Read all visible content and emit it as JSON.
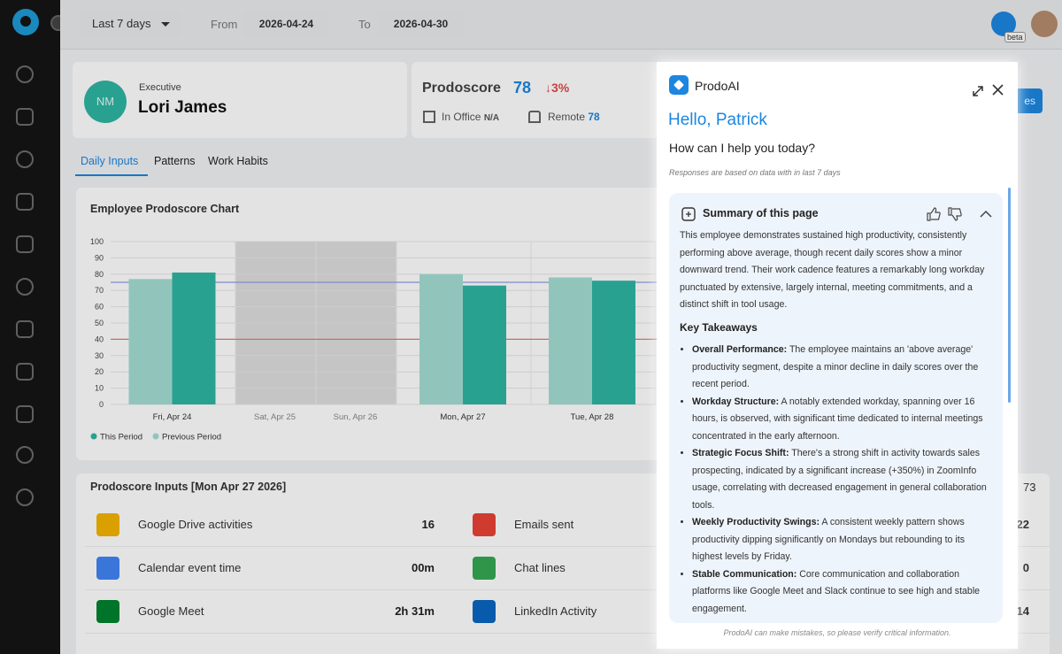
{
  "topbar": {
    "range": "Last 7 days",
    "from_label": "From",
    "from": "2026-04-24",
    "to_label": "To",
    "to": "2026-04-30",
    "badge": "beta"
  },
  "profile": {
    "initials": "NM",
    "role": "Executive",
    "name": "Lori James"
  },
  "score": {
    "label": "Prodoscore",
    "value": 78,
    "change": "↓3%",
    "office_label": "In Office",
    "office": "N/A",
    "remote_label": "Remote",
    "remote": 78
  },
  "hidden_button": "es",
  "tabs": [
    "Daily Inputs",
    "Patterns",
    "Work Habits"
  ],
  "chart": {
    "type": "bar",
    "title": "Employee Prodoscore Chart",
    "categories": [
      "Fri, Apr 24",
      "Sat, Apr 25",
      "Sun, Apr 26",
      "Mon, Apr 27",
      "Tue, Apr 28"
    ],
    "series": [
      {
        "name": "This Period",
        "color": "#2fb5a3",
        "values": [
          81,
          null,
          null,
          73,
          76
        ]
      },
      {
        "name": "Previous Period",
        "color": "#a3ded4",
        "values": [
          77,
          null,
          null,
          80,
          78
        ]
      }
    ],
    "reference_lines": [
      {
        "value": 75,
        "color": "#8f9ce6"
      },
      {
        "value": 40,
        "color": "#e07b7b"
      }
    ],
    "ylim": [
      0,
      100
    ],
    "yticks": [
      0,
      10,
      20,
      30,
      40,
      50,
      60,
      70,
      80,
      90,
      100
    ],
    "grid": true
  },
  "inputs": {
    "title": "Prodoscore Inputs [Mon Apr 27 2026]",
    "total": 73,
    "rows": [
      [
        {
          "label": "Google Drive activities",
          "value": 16
        },
        {
          "label": "Emails sent",
          "value": 22
        }
      ],
      [
        {
          "label": "Calendar event time",
          "value": "00m"
        },
        {
          "label": "Chat lines",
          "value": 0
        }
      ],
      [
        {
          "label": "Google Meet",
          "value": "2h 31m"
        },
        {
          "label": "LinkedIn Activity",
          "value": 14
        }
      ]
    ]
  },
  "assistant": {
    "name": "ProdoAI",
    "greeting": "Hello, Patrick",
    "prompt": "How can I help you today?",
    "note": "Responses are based on data with in last 7 days",
    "summary_title": "Summary of this page",
    "summary": "This employee demonstrates sustained high productivity, consistently performing above average, though recent daily scores show a minor downward trend. Their work cadence features a remarkably long workday punctuated by extensive, largely internal, meeting commitments, and a distinct shift in tool usage.",
    "takeaways_title": "Key Takeaways",
    "takeaways": [
      {
        "label": "Overall Performance:",
        "text": "The employee maintains an 'above average' productivity segment, despite a minor decline in daily scores over the recent period."
      },
      {
        "label": "Workday Structure:",
        "text": "A notably extended workday, spanning over 16 hours, is observed, with significant time dedicated to internal meetings concentrated in the early afternoon."
      },
      {
        "label": "Strategic Focus Shift:",
        "text": "There's a strong shift in activity towards sales prospecting, indicated by a significant increase (+350%) in ZoomInfo usage, correlating with decreased engagement in general collaboration tools."
      },
      {
        "label": "Weekly Productivity Swings:",
        "text": "A consistent weekly pattern shows productivity dipping significantly on Mondays but rebounding to its highest levels by Friday."
      },
      {
        "label": "Stable Communication:",
        "text": "Core communication and collaboration platforms like Google Meet and Slack continue to see high and stable engagement."
      }
    ],
    "disclaimer": "ProdoAI can make mistakes, so please verify critical information."
  }
}
